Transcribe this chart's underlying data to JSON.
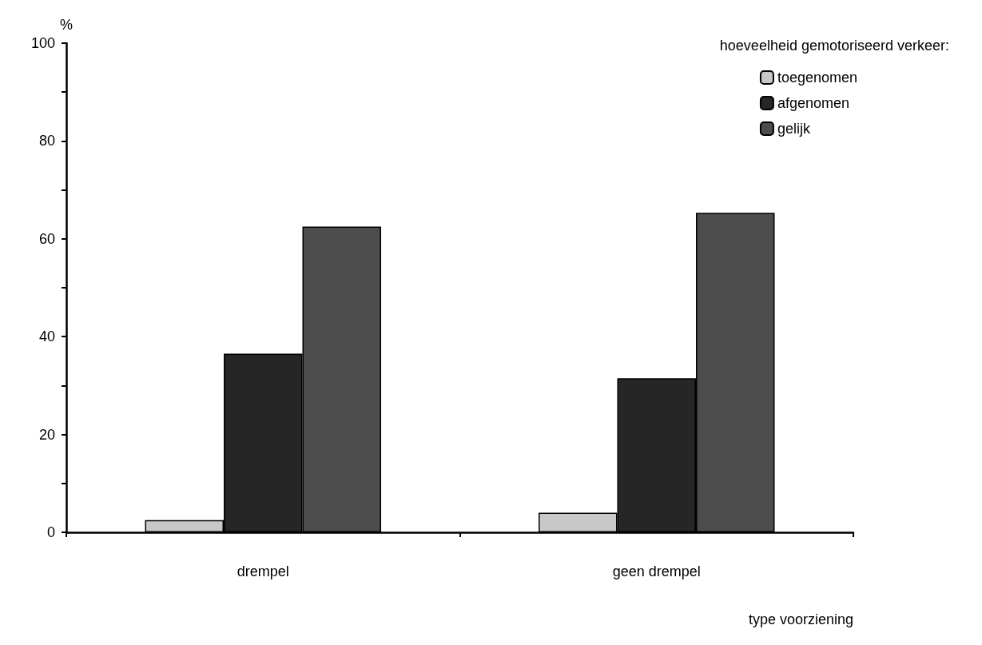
{
  "chart_data": {
    "type": "bar",
    "ylabel": "%",
    "xlabel": "type voorziening",
    "legend_title": "hoeveelheid gemotoriseerd verkeer:",
    "categories": [
      "drempel",
      "geen drempel"
    ],
    "series": [
      {
        "name": "toegenomen",
        "color": "#c8c8c8",
        "values": [
          2.5,
          4
        ]
      },
      {
        "name": "afgenomen",
        "color": "#262626",
        "values": [
          36.5,
          31.5
        ]
      },
      {
        "name": "gelijk",
        "color": "#4d4d4d",
        "values": [
          62.5,
          65.3
        ]
      }
    ],
    "ylim": [
      0,
      100
    ],
    "yticks": [
      0,
      {
        "value": 10,
        "label": null
      },
      20,
      {
        "value": 30,
        "label": null
      },
      40,
      {
        "value": 50,
        "label": null
      },
      60,
      {
        "value": 70,
        "label": null
      },
      80,
      {
        "value": 90,
        "label": null
      },
      100
    ],
    "grid": false,
    "legend": "top right"
  }
}
